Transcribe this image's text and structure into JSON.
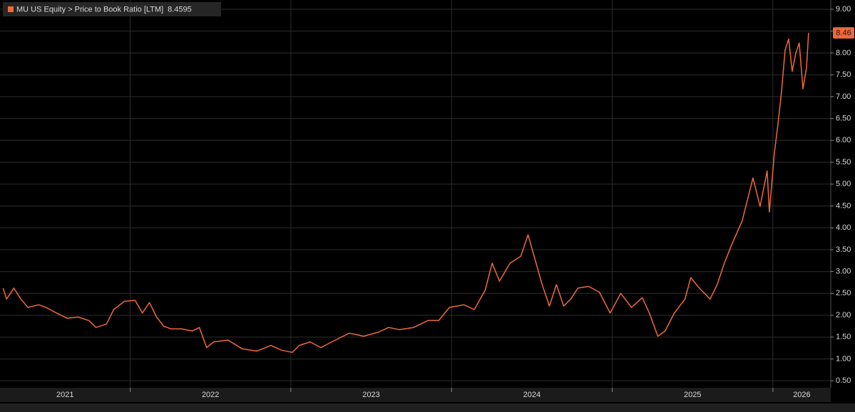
{
  "chart_data": {
    "type": "line",
    "series": [
      {
        "name": "MU US Equity > Price to Book Ratio [LTM]",
        "color": "#f0693a",
        "last_label": "8.46",
        "x": [
          2021.209,
          2021.231,
          2021.276,
          2021.32,
          2021.364,
          2021.431,
          2021.476,
          2021.542,
          2021.609,
          2021.676,
          2021.742,
          2021.787,
          2021.853,
          2021.898,
          2021.964,
          2022.031,
          2022.076,
          2022.12,
          2022.164,
          2022.209,
          2022.253,
          2022.32,
          2022.387,
          2022.431,
          2022.476,
          2022.52,
          2022.609,
          2022.698,
          2022.787,
          2022.876,
          2022.942,
          2023.009,
          2023.053,
          2023.12,
          2023.187,
          2023.276,
          2023.364,
          2023.453,
          2023.542,
          2023.609,
          2023.676,
          2023.764,
          2023.853,
          2023.92,
          2023.987,
          2024.076,
          2024.142,
          2024.209,
          2024.253,
          2024.298,
          2024.364,
          2024.431,
          2024.476,
          2024.52,
          2024.564,
          2024.609,
          2024.653,
          2024.698,
          2024.742,
          2024.787,
          2024.853,
          2024.92,
          2024.987,
          2025.053,
          2025.12,
          2025.187,
          2025.231,
          2025.284,
          2025.329,
          2025.387,
          2025.453,
          2025.489,
          2025.542,
          2025.609,
          2025.653,
          2025.698,
          2025.742,
          2025.809,
          2025.876,
          2025.92,
          2025.964,
          2025.978,
          2026.009,
          2026.031,
          2026.053,
          2026.076,
          2026.098,
          2026.12,
          2026.142,
          2026.164,
          2026.187,
          2026.209,
          2026.222
        ],
        "values": [
          2.62,
          2.37,
          2.62,
          2.37,
          2.18,
          2.24,
          2.18,
          2.05,
          1.93,
          1.96,
          1.88,
          1.72,
          1.8,
          2.13,
          2.32,
          2.34,
          2.05,
          2.29,
          1.96,
          1.75,
          1.69,
          1.69,
          1.64,
          1.72,
          1.26,
          1.39,
          1.43,
          1.23,
          1.18,
          1.31,
          1.2,
          1.15,
          1.31,
          1.39,
          1.26,
          1.43,
          1.59,
          1.52,
          1.61,
          1.72,
          1.67,
          1.72,
          1.88,
          1.88,
          2.18,
          2.24,
          2.13,
          2.57,
          3.19,
          2.78,
          3.19,
          3.35,
          3.84,
          3.27,
          2.7,
          2.21,
          2.7,
          2.21,
          2.37,
          2.62,
          2.66,
          2.53,
          2.05,
          2.5,
          2.18,
          2.4,
          2.05,
          1.52,
          1.64,
          2.05,
          2.37,
          2.86,
          2.62,
          2.37,
          2.7,
          3.19,
          3.6,
          4.16,
          5.14,
          4.49,
          5.3,
          4.36,
          5.71,
          6.36,
          7.09,
          8.07,
          8.32,
          7.58,
          7.99,
          8.23,
          7.18,
          7.66,
          8.4595
        ]
      }
    ],
    "xlim": [
      2021.19,
      2026.36
    ],
    "xticks": [
      {
        "value": 2021,
        "label": "2021"
      },
      {
        "value": 2022,
        "label": "2022"
      },
      {
        "value": 2023,
        "label": "2023"
      },
      {
        "value": 2024,
        "label": "2024"
      },
      {
        "value": 2025,
        "label": "2025"
      },
      {
        "value": 2026,
        "label": "2026"
      }
    ],
    "ylim": [
      0.34,
      9.13
    ],
    "yticks": [
      {
        "value": 0.5,
        "label": "0.50"
      },
      {
        "value": 1,
        "label": "1.00"
      },
      {
        "value": 1.5,
        "label": "1.50"
      },
      {
        "value": 2,
        "label": "2.00"
      },
      {
        "value": 2.5,
        "label": "2.50"
      },
      {
        "value": 3,
        "label": "3.00"
      },
      {
        "value": 3.5,
        "label": "3.50"
      },
      {
        "value": 4,
        "label": "4.00"
      },
      {
        "value": 4.5,
        "label": "4.50"
      },
      {
        "value": 5,
        "label": "5.00"
      },
      {
        "value": 5.5,
        "label": "5.50"
      },
      {
        "value": 6,
        "label": "6.00"
      },
      {
        "value": 6.5,
        "label": "6.50"
      },
      {
        "value": 7,
        "label": "7.00"
      },
      {
        "value": 7.5,
        "label": "7.50"
      },
      {
        "value": 8,
        "label": "8.00"
      },
      {
        "value": 8.5,
        "label": "8.50"
      },
      {
        "value": 9,
        "label": "9.00"
      }
    ],
    "grid": true
  }
}
